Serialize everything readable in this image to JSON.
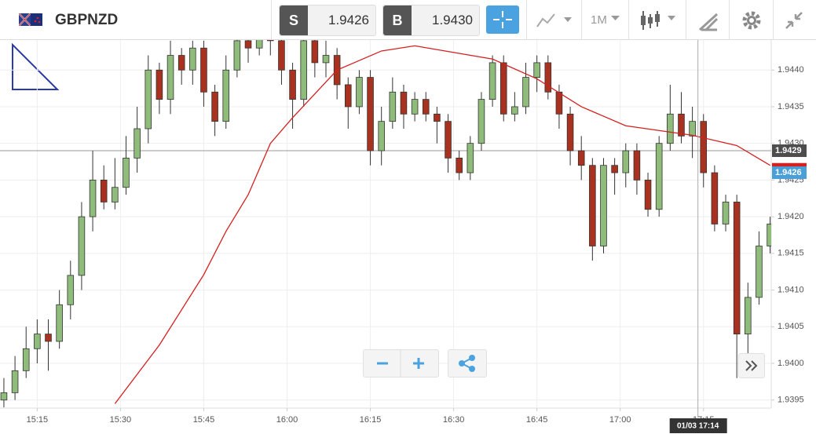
{
  "toolbar": {
    "symbol": "GBPNZD",
    "sell_label": "S",
    "sell_price": "1.9426",
    "buy_label": "B",
    "buy_price": "1.9430",
    "timeframe": "1M"
  },
  "chart_data": {
    "type": "candlestick",
    "up_color": "#8fbc7a",
    "down_color": "#a8321f",
    "open": [
      1.9395,
      1.9396,
      1.9399,
      1.9402,
      1.9404,
      1.9403,
      1.9408,
      1.9412,
      1.942,
      1.9425,
      1.9422,
      1.9424,
      1.9428,
      1.9432,
      1.944,
      1.9436,
      1.9442,
      1.944,
      1.9443,
      1.9437,
      1.9433,
      1.944,
      1.9444,
      1.9443,
      1.9445,
      1.9444,
      1.944,
      1.9436,
      1.9444,
      1.9441,
      1.9442,
      1.9438,
      1.9435,
      1.9439,
      1.9429,
      1.9433,
      1.9437,
      1.9434,
      1.9436,
      1.9434,
      1.9433,
      1.9428,
      1.9426,
      1.943,
      1.9436,
      1.9441,
      1.9434,
      1.9435,
      1.9439,
      1.9441,
      1.9437,
      1.9434,
      1.9429,
      1.9427,
      1.9416,
      1.9427,
      1.9426,
      1.9429,
      1.9425,
      1.9421,
      1.943,
      1.9434,
      1.9431,
      1.9433,
      1.9426,
      1.9419,
      1.9422,
      1.9404,
      1.9409,
      1.9416
    ],
    "high": [
      1.9398,
      1.9401,
      1.9405,
      1.9406,
      1.9406,
      1.941,
      1.9414,
      1.9422,
      1.9429,
      1.9427,
      1.9428,
      1.9431,
      1.9435,
      1.9442,
      1.9441,
      1.9444,
      1.9443,
      1.9444,
      1.9444,
      1.9438,
      1.9442,
      1.9446,
      1.9447,
      1.9448,
      1.9447,
      1.9445,
      1.9441,
      1.9446,
      1.9446,
      1.9444,
      1.9443,
      1.9439,
      1.944,
      1.944,
      1.9435,
      1.9439,
      1.9438,
      1.9437,
      1.9437,
      1.9435,
      1.9434,
      1.9429,
      1.9431,
      1.9437,
      1.9442,
      1.9442,
      1.9437,
      1.9441,
      1.9442,
      1.9442,
      1.9438,
      1.9435,
      1.9431,
      1.9428,
      1.9428,
      1.9428,
      1.943,
      1.943,
      1.9426,
      1.9431,
      1.9438,
      1.9437,
      1.9435,
      1.9434,
      1.9427,
      1.9423,
      1.9423,
      1.9411,
      1.9418,
      1.942
    ],
    "low": [
      1.9394,
      1.9395,
      1.9398,
      1.94,
      1.9399,
      1.9402,
      1.9406,
      1.941,
      1.9418,
      1.9421,
      1.9421,
      1.9423,
      1.9426,
      1.943,
      1.9434,
      1.9434,
      1.9438,
      1.9438,
      1.9435,
      1.9431,
      1.9432,
      1.9439,
      1.9441,
      1.9442,
      1.9442,
      1.9438,
      1.9432,
      1.9435,
      1.9439,
      1.9439,
      1.9436,
      1.9432,
      1.9434,
      1.9427,
      1.9427,
      1.9432,
      1.9432,
      1.9433,
      1.9433,
      1.943,
      1.9426,
      1.9425,
      1.9425,
      1.9429,
      1.9435,
      1.9433,
      1.9433,
      1.9434,
      1.9437,
      1.9436,
      1.9432,
      1.9427,
      1.9425,
      1.9414,
      1.9415,
      1.9423,
      1.9424,
      1.9423,
      1.942,
      1.942,
      1.9429,
      1.943,
      1.9428,
      1.9424,
      1.9418,
      1.9418,
      1.9398,
      1.94,
      1.9408,
      1.9415
    ],
    "close": [
      1.9396,
      1.9399,
      1.9402,
      1.9404,
      1.9403,
      1.9408,
      1.9412,
      1.942,
      1.9425,
      1.9422,
      1.9424,
      1.9428,
      1.9432,
      1.944,
      1.9436,
      1.9442,
      1.944,
      1.9443,
      1.9437,
      1.9433,
      1.944,
      1.9444,
      1.9443,
      1.9445,
      1.9444,
      1.944,
      1.9436,
      1.9444,
      1.9441,
      1.9442,
      1.9438,
      1.9435,
      1.9439,
      1.9429,
      1.9433,
      1.9437,
      1.9434,
      1.9436,
      1.9434,
      1.9433,
      1.9428,
      1.9426,
      1.943,
      1.9436,
      1.9441,
      1.9434,
      1.9435,
      1.9439,
      1.9441,
      1.9437,
      1.9434,
      1.9429,
      1.9427,
      1.9416,
      1.9427,
      1.9426,
      1.9429,
      1.9425,
      1.9421,
      1.943,
      1.9434,
      1.9431,
      1.9433,
      1.9426,
      1.9419,
      1.9422,
      1.9404,
      1.9409,
      1.9416,
      1.9419
    ],
    "moving_average": {
      "color": "#d42020",
      "x": [
        10,
        14,
        18,
        20,
        22,
        24,
        26,
        30,
        34,
        37,
        44,
        48,
        52,
        56,
        62,
        66,
        69
      ],
      "values": [
        1.93945,
        1.94025,
        1.94121,
        1.9418,
        1.9423,
        1.943,
        1.94335,
        1.944,
        1.94426,
        1.94433,
        1.94415,
        1.94388,
        1.9435,
        1.94324,
        1.94311,
        1.94297,
        1.9427
      ]
    },
    "price_lines": [
      {
        "value": 1.9429,
        "color": "#4d4d4d"
      },
      {
        "value": 1.9426,
        "color": "#4a9fd8"
      }
    ],
    "crosshair": {
      "x": 62.5,
      "label": "01/03 17:14"
    },
    "xlim": [
      -0.35,
      69.1
    ],
    "ylim": [
      1.93939,
      1.94442
    ],
    "grid": true,
    "xticks": [
      {
        "value": 3,
        "label": "15:15"
      },
      {
        "value": 10.5,
        "label": "15:30"
      },
      {
        "value": 18,
        "label": "15:45"
      },
      {
        "value": 25.5,
        "label": "16:00"
      },
      {
        "value": 33,
        "label": "16:15"
      },
      {
        "value": 40.5,
        "label": "16:30"
      },
      {
        "value": 48,
        "label": "16:45"
      },
      {
        "value": 55.5,
        "label": "17:00"
      },
      {
        "value": 63,
        "label": "17:15"
      }
    ],
    "yticks": [
      {
        "value": 1.9395,
        "label": "1.9395"
      },
      {
        "value": 1.94,
        "label": "1.9400"
      },
      {
        "value": 1.9405,
        "label": "1.9405"
      },
      {
        "value": 1.941,
        "label": "1.9410"
      },
      {
        "value": 1.9415,
        "label": "1.9415"
      },
      {
        "value": 1.942,
        "label": "1.9420"
      },
      {
        "value": 1.9425,
        "label": "1.9425"
      },
      {
        "value": 1.943,
        "label": "1.9430"
      },
      {
        "value": 1.9435,
        "label": "1.9435"
      },
      {
        "value": 1.944,
        "label": "1.9440"
      }
    ]
  }
}
